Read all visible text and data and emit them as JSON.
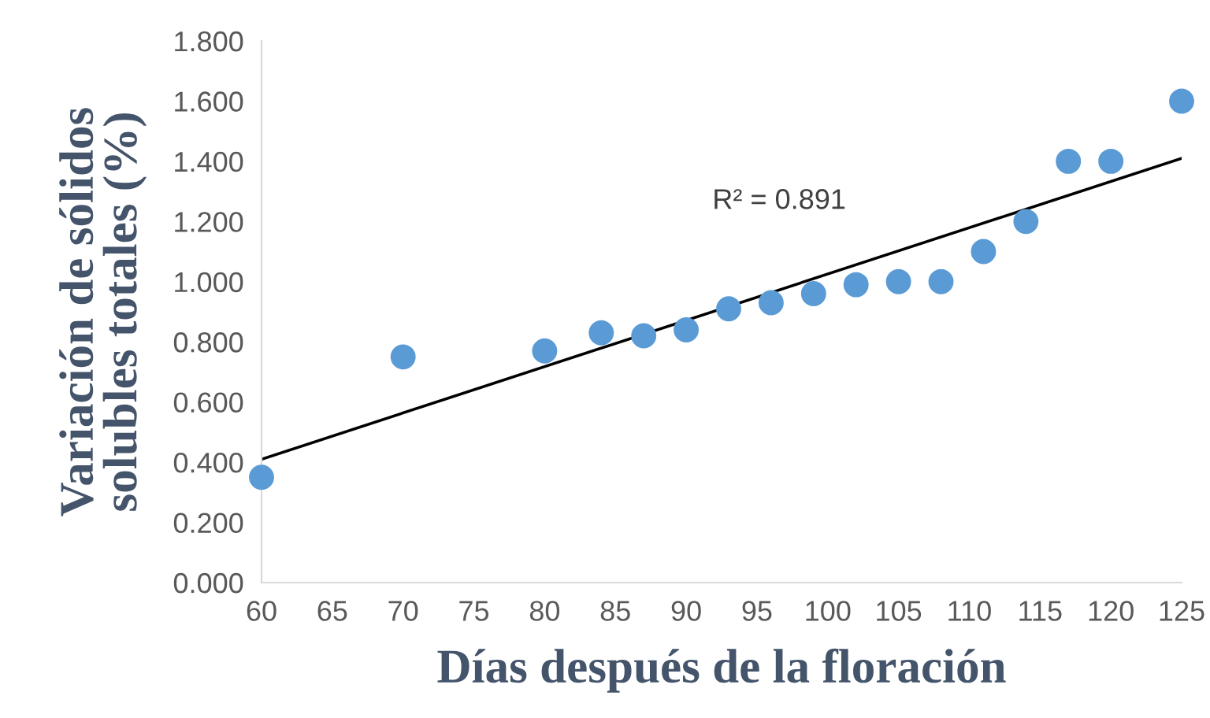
{
  "chart_data": {
    "type": "scatter",
    "xlabel": "Días después de la floración",
    "ylabel": "Variación de sólidos\nsolubles totales (%)",
    "annotations": [
      "R² = 0.891"
    ],
    "x": [
      60,
      70,
      80,
      84,
      87,
      90,
      93,
      96,
      99,
      102,
      105,
      108,
      111,
      114,
      117,
      120,
      125
    ],
    "series": [
      {
        "color": "#5b9bd5",
        "values": [
          0.35,
          0.75,
          0.77,
          0.83,
          0.82,
          0.84,
          0.91,
          0.93,
          0.96,
          0.99,
          1.0,
          1.0,
          1.1,
          1.2,
          1.4,
          1.4,
          1.6
        ]
      },
      {
        "type": "line",
        "marker": "none",
        "color": "#000000",
        "x": [
          60,
          125
        ],
        "values": [
          0.41,
          1.41
        ]
      }
    ],
    "marker": "circle",
    "grid": false,
    "legend": false,
    "xlim": [
      60,
      125
    ],
    "xticks": [
      60,
      65,
      70,
      75,
      80,
      85,
      90,
      95,
      100,
      105,
      110,
      115,
      120,
      125
    ],
    "ylim": [
      0,
      1.8
    ],
    "yticks": [
      {
        "value": 0,
        "label": "0.000"
      },
      {
        "value": 0.2,
        "label": "0.200"
      },
      {
        "value": 0.4,
        "label": "0.400"
      },
      {
        "value": 0.6,
        "label": "0.600"
      },
      {
        "value": 0.8,
        "label": "0.800"
      },
      {
        "value": 1.0,
        "label": "1.000"
      },
      {
        "value": 1.2,
        "label": "1.200"
      },
      {
        "value": 1.4,
        "label": "1.400"
      },
      {
        "value": 1.6,
        "label": "1.600"
      },
      {
        "value": 1.8,
        "label": "1.800"
      }
    ]
  }
}
